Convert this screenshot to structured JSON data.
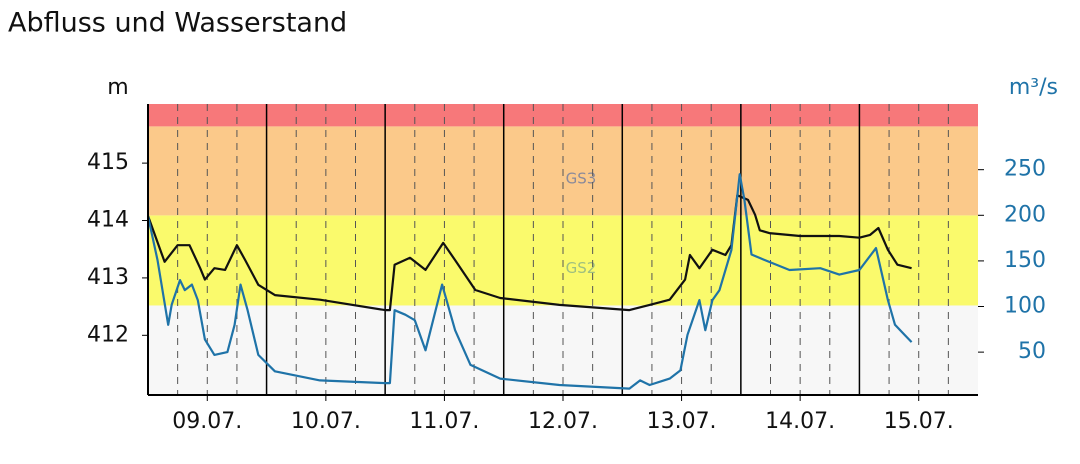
{
  "chart_data": {
    "type": "line",
    "title": "Abfluss und Wasserstand",
    "y_label": "m",
    "y2_label": "m³/s",
    "xlim": [
      0,
      7
    ],
    "xticks": [
      {
        "value": 0.5,
        "label": "09.07."
      },
      {
        "value": 1.5,
        "label": "10.07."
      },
      {
        "value": 2.5,
        "label": "11.07."
      },
      {
        "value": 3.5,
        "label": "12.07."
      },
      {
        "value": 4.5,
        "label": "13.07."
      },
      {
        "value": 5.5,
        "label": "14.07."
      },
      {
        "value": 6.5,
        "label": "15.07."
      }
    ],
    "x_major_lines": [
      1,
      2,
      3,
      4,
      5,
      6
    ],
    "x_minor_lines": [
      0.25,
      0.5,
      0.75,
      1.25,
      1.5,
      1.75,
      2.25,
      2.5,
      2.75,
      3.25,
      3.5,
      3.75,
      4.25,
      4.5,
      4.75,
      5.25,
      5.5,
      5.75,
      6.25,
      6.5,
      6.75
    ],
    "ylim": [
      410.96,
      416.03
    ],
    "yticks": [
      412,
      413,
      414,
      415
    ],
    "y2lim": [
      3,
      322
    ],
    "y2ticks": [
      50,
      100,
      150,
      200,
      250
    ],
    "bands": [
      {
        "from": 412.52,
        "to": 414.09,
        "color": "#fafa6c",
        "label": "GS2",
        "label_color": "#9fbf7f"
      },
      {
        "from": 414.09,
        "to": 415.64,
        "color": "#fbc98a",
        "label": "GS3",
        "label_color": "#8a8a9a"
      },
      {
        "from": 415.64,
        "to": 416.03,
        "color": "#f7787a"
      }
    ],
    "series": [
      {
        "name": "Wasserstand",
        "color": "#111111",
        "axis": "y",
        "x": [
          0,
          0.14,
          0.25,
          0.35,
          0.44,
          0.48,
          0.56,
          0.65,
          0.75,
          0.82,
          0.93,
          1.07,
          1.45,
          2.0,
          2.04,
          2.08,
          2.21,
          2.34,
          2.49,
          2.59,
          2.76,
          2.97,
          3.47,
          4.06,
          4.23,
          4.4,
          4.53,
          4.57,
          4.65,
          4.76,
          4.87,
          4.92,
          4.97,
          5.06,
          5.12,
          5.16,
          5.24,
          5.5,
          5.83,
          6.0,
          6.09,
          6.16,
          6.24,
          6.32,
          6.44
        ],
        "values": [
          414.08,
          413.28,
          413.57,
          413.57,
          413.17,
          412.97,
          413.17,
          413.14,
          413.57,
          413.31,
          412.88,
          412.7,
          412.62,
          412.44,
          412.44,
          413.23,
          413.35,
          413.14,
          413.61,
          413.31,
          412.79,
          412.65,
          412.53,
          412.44,
          412.53,
          412.62,
          412.97,
          413.4,
          413.17,
          413.49,
          413.4,
          413.57,
          414.44,
          414.36,
          414.1,
          413.83,
          413.78,
          413.73,
          413.73,
          413.7,
          413.75,
          413.87,
          413.49,
          413.23,
          413.17
        ]
      },
      {
        "name": "Abfluss",
        "color": "#1f73a8",
        "axis": "y2",
        "x": [
          0,
          0.08,
          0.17,
          0.2,
          0.27,
          0.31,
          0.37,
          0.42,
          0.48,
          0.56,
          0.67,
          0.73,
          0.78,
          0.84,
          0.93,
          1.07,
          1.45,
          2.0,
          2.04,
          2.08,
          2.17,
          2.25,
          2.34,
          2.48,
          2.59,
          2.72,
          2.97,
          3.47,
          4.06,
          4.15,
          4.23,
          4.4,
          4.49,
          4.55,
          4.65,
          4.7,
          4.76,
          4.82,
          4.92,
          4.99,
          5.03,
          5.09,
          5.2,
          5.41,
          5.67,
          5.83,
          6.0,
          6.14,
          6.24,
          6.3,
          6.38,
          6.44
        ],
        "values": [
          199,
          151,
          80,
          102,
          129,
          118,
          124,
          107,
          64,
          47,
          50,
          80,
          124,
          96,
          47,
          29,
          19,
          16,
          16,
          96,
          91,
          85,
          52,
          124,
          74,
          36,
          21,
          14,
          10,
          19,
          14,
          21,
          30,
          69,
          107,
          74,
          107,
          118,
          162,
          245,
          217,
          157,
          151,
          140,
          142,
          135,
          140,
          164,
          107,
          80,
          69,
          61
        ]
      }
    ]
  }
}
